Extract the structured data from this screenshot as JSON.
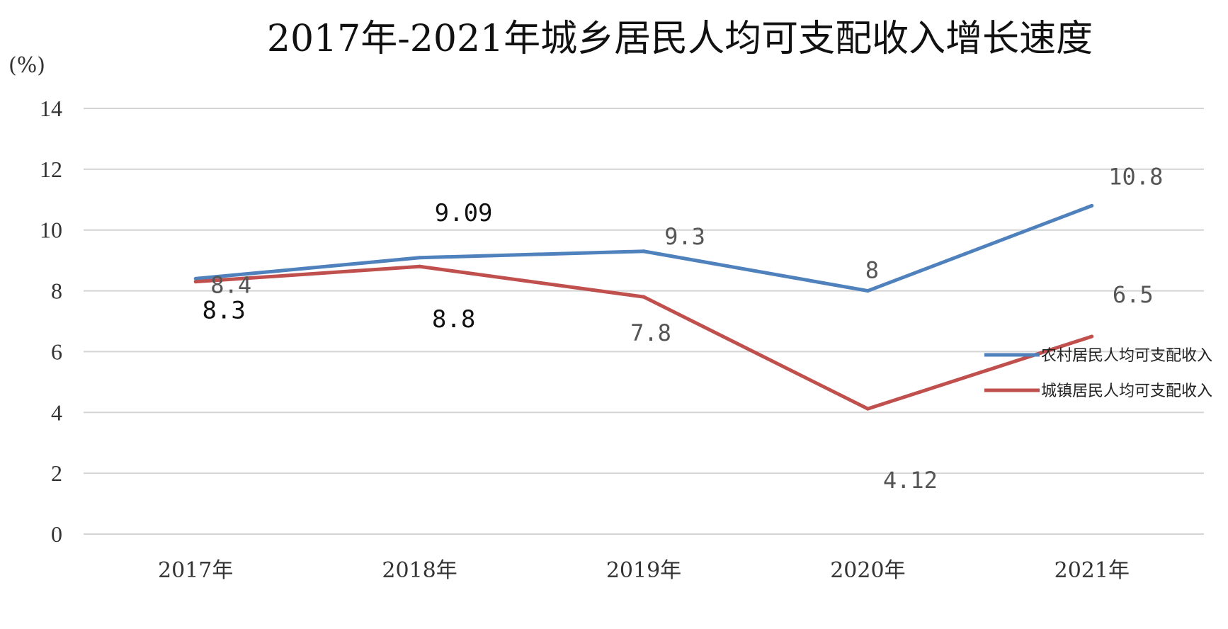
{
  "chart_data": {
    "type": "line",
    "title": "2017年-2021年城乡居民人均可支配收入增长速度",
    "unit_label": "(%)",
    "categories": [
      "2017年",
      "2018年",
      "2019年",
      "2020年",
      "2021年"
    ],
    "ylim": [
      0,
      14
    ],
    "yticks": [
      "0",
      "2",
      "4",
      "6",
      "8",
      "10",
      "12",
      "14"
    ],
    "grid": true,
    "legend_position": "right",
    "series": [
      {
        "name": "农村居民人均可支配收入",
        "color": "#4f81bd",
        "values": [
          8.4,
          9.09,
          9.3,
          8,
          10.8
        ],
        "labels": [
          "8.4",
          "9.09",
          "9.3",
          "8",
          "10.8"
        ]
      },
      {
        "name": "城镇居民人均可支配收入",
        "color": "#c0504d",
        "values": [
          8.3,
          8.8,
          7.8,
          4.12,
          6.5
        ],
        "labels": [
          "8.3",
          "8.8",
          "7.8",
          "4.12",
          "6.5"
        ]
      }
    ]
  }
}
